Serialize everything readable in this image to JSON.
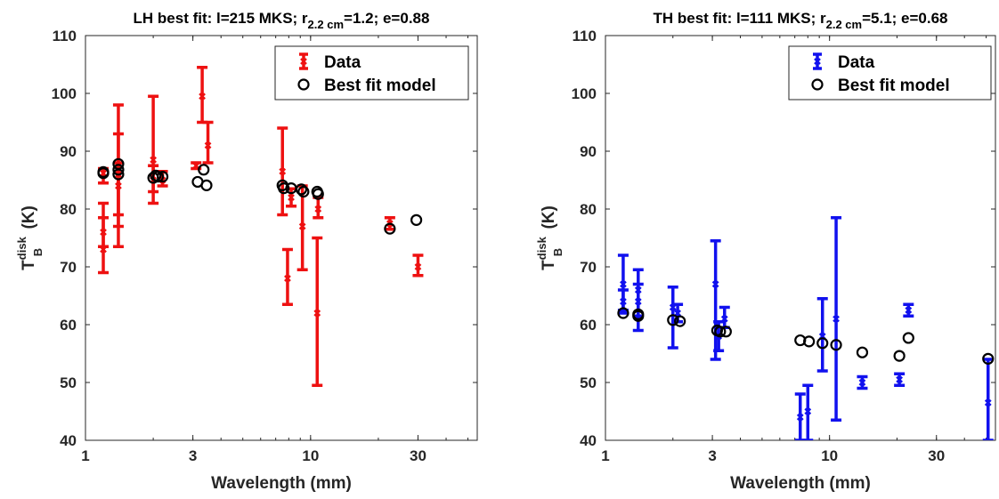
{
  "chart_data": [
    {
      "type": "scatter",
      "title": {
        "pre": "LH best fit: l=215 MKS; r",
        "sub": "2.2 cm",
        "post": "=1.2; e=0.88"
      },
      "xlabel": "Wavelength (mm)",
      "ylabel": {
        "main": "T",
        "sup": "disk",
        "sub": "B",
        "unit": " (K)"
      },
      "xscale": "log",
      "xlim": [
        1,
        55
      ],
      "ylim": [
        40,
        110
      ],
      "xticks": [
        1,
        3,
        10,
        30
      ],
      "xtick_labels": [
        "1",
        "3",
        "10",
        "30"
      ],
      "yticks": [
        40,
        50,
        60,
        70,
        80,
        90,
        100,
        110
      ],
      "ytick_labels": [
        "40",
        "50",
        "60",
        "70",
        "80",
        "90",
        "100",
        "110"
      ],
      "grid": false,
      "legend_position": "top-right",
      "legend": [
        "Data",
        "Best fit model"
      ],
      "colors": {
        "data": "#ee1111",
        "model": "#000000"
      },
      "series": [
        {
          "name": "Data",
          "kind": "errorbar",
          "points": [
            {
              "x": 1.2,
              "y": 86.2,
              "lo": 84.5,
              "hi": 87.0
            },
            {
              "x": 1.2,
              "y": 76.0,
              "lo": 73.5,
              "hi": 78.5
            },
            {
              "x": 1.2,
              "y": 73.0,
              "lo": 69.0,
              "hi": 81.0
            },
            {
              "x": 1.4,
              "y": 87.5,
              "lo": 77.0,
              "hi": 98.0
            },
            {
              "x": 1.4,
              "y": 84.0,
              "lo": 73.5,
              "hi": 88.0
            },
            {
              "x": 1.4,
              "y": 86.0,
              "lo": 79.0,
              "hi": 93.0
            },
            {
              "x": 2.0,
              "y": 88.5,
              "lo": 81.0,
              "hi": 99.5
            },
            {
              "x": 2.0,
              "y": 85.0,
              "lo": 83.0,
              "hi": 87.5
            },
            {
              "x": 2.2,
              "y": 85.0,
              "lo": 84.0,
              "hi": 86.5
            },
            {
              "x": 3.1,
              "y": 87.5,
              "lo": 87.0,
              "hi": 88.0
            },
            {
              "x": 3.3,
              "y": 99.5,
              "lo": 95.0,
              "hi": 104.5
            },
            {
              "x": 3.5,
              "y": 91.0,
              "lo": 88.0,
              "hi": 95.0
            },
            {
              "x": 7.5,
              "y": 86.5,
              "lo": 79.0,
              "hi": 94.0
            },
            {
              "x": 7.9,
              "y": 68.0,
              "lo": 63.5,
              "hi": 73.0
            },
            {
              "x": 8.2,
              "y": 82.0,
              "lo": 80.5,
              "hi": 83.5
            },
            {
              "x": 9.2,
              "y": 77.0,
              "lo": 69.5,
              "hi": 84.0
            },
            {
              "x": 10.7,
              "y": 62.0,
              "lo": 49.5,
              "hi": 75.0
            },
            {
              "x": 10.8,
              "y": 80.0,
              "lo": 78.5,
              "hi": 82.0
            },
            {
              "x": 22.5,
              "y": 77.5,
              "lo": 76.5,
              "hi": 78.5
            },
            {
              "x": 30.0,
              "y": 70.0,
              "lo": 68.5,
              "hi": 72.0
            }
          ]
        },
        {
          "name": "Best fit model",
          "kind": "markers",
          "points": [
            {
              "x": 1.2,
              "y": 86.2
            },
            {
              "x": 1.2,
              "y": 86.4
            },
            {
              "x": 1.4,
              "y": 86.0
            },
            {
              "x": 1.4,
              "y": 86.8
            },
            {
              "x": 1.4,
              "y": 87.8
            },
            {
              "x": 2.0,
              "y": 85.4
            },
            {
              "x": 2.05,
              "y": 85.8
            },
            {
              "x": 2.1,
              "y": 85.6
            },
            {
              "x": 2.2,
              "y": 85.6
            },
            {
              "x": 3.15,
              "y": 84.7
            },
            {
              "x": 3.35,
              "y": 86.8
            },
            {
              "x": 3.45,
              "y": 84.1
            },
            {
              "x": 7.5,
              "y": 84.1
            },
            {
              "x": 7.6,
              "y": 83.6
            },
            {
              "x": 8.2,
              "y": 83.6
            },
            {
              "x": 9.1,
              "y": 83.4
            },
            {
              "x": 9.3,
              "y": 83.0
            },
            {
              "x": 10.7,
              "y": 83.0
            },
            {
              "x": 10.8,
              "y": 82.6
            },
            {
              "x": 22.5,
              "y": 76.6
            },
            {
              "x": 29.5,
              "y": 78.1
            }
          ]
        }
      ]
    },
    {
      "type": "scatter",
      "title": {
        "pre": "TH best fit: l=111 MKS; r",
        "sub": "2.2 cm",
        "post": "=5.1; e=0.68"
      },
      "xlabel": "Wavelength (mm)",
      "ylabel": {
        "main": "T",
        "sup": "disk",
        "sub": "B",
        "unit": " (K)"
      },
      "xscale": "log",
      "xlim": [
        1,
        55
      ],
      "ylim": [
        40,
        110
      ],
      "xticks": [
        1,
        3,
        10,
        30
      ],
      "xtick_labels": [
        "1",
        "3",
        "10",
        "30"
      ],
      "yticks": [
        40,
        50,
        60,
        70,
        80,
        90,
        100,
        110
      ],
      "ytick_labels": [
        "40",
        "50",
        "60",
        "70",
        "80",
        "90",
        "100",
        "110"
      ],
      "grid": false,
      "legend_position": "top-right",
      "legend": [
        "Data",
        "Best fit model"
      ],
      "colors": {
        "data": "#1111ee",
        "model": "#000000"
      },
      "series": [
        {
          "name": "Data",
          "kind": "errorbar",
          "points": [
            {
              "x": 1.2,
              "y": 67.0,
              "lo": 62.5,
              "hi": 72.0
            },
            {
              "x": 1.2,
              "y": 64.0,
              "lo": 62.0,
              "hi": 66.0
            },
            {
              "x": 1.4,
              "y": 66.0,
              "lo": 61.5,
              "hi": 69.5
            },
            {
              "x": 1.4,
              "y": 64.0,
              "lo": 59.0,
              "hi": 67.0
            },
            {
              "x": 2.0,
              "y": 63.0,
              "lo": 56.0,
              "hi": 66.5
            },
            {
              "x": 2.1,
              "y": 62.0,
              "lo": 60.5,
              "hi": 63.5
            },
            {
              "x": 3.1,
              "y": 67.0,
              "lo": 54.0,
              "hi": 74.5
            },
            {
              "x": 3.2,
              "y": 58.0,
              "lo": 55.5,
              "hi": 60.5
            },
            {
              "x": 3.4,
              "y": 61.0,
              "lo": 59.5,
              "hi": 63.0
            },
            {
              "x": 7.4,
              "y": 44.0,
              "lo": 40.0,
              "hi": 48.0
            },
            {
              "x": 8.0,
              "y": 45.0,
              "lo": 40.0,
              "hi": 49.5
            },
            {
              "x": 9.3,
              "y": 58.0,
              "lo": 52.0,
              "hi": 64.5
            },
            {
              "x": 10.7,
              "y": 61.0,
              "lo": 43.5,
              "hi": 78.5
            },
            {
              "x": 14.0,
              "y": 50.0,
              "lo": 49.0,
              "hi": 51.0
            },
            {
              "x": 20.5,
              "y": 50.5,
              "lo": 49.5,
              "hi": 51.5
            },
            {
              "x": 22.5,
              "y": 62.5,
              "lo": 61.5,
              "hi": 63.5
            },
            {
              "x": 51.0,
              "y": 46.5,
              "lo": 40.0,
              "hi": 54.0
            }
          ]
        },
        {
          "name": "Best fit model",
          "kind": "markers",
          "points": [
            {
              "x": 1.2,
              "y": 62.0
            },
            {
              "x": 1.4,
              "y": 61.5
            },
            {
              "x": 1.4,
              "y": 61.8
            },
            {
              "x": 2.0,
              "y": 60.8
            },
            {
              "x": 2.15,
              "y": 60.6
            },
            {
              "x": 3.15,
              "y": 59.0
            },
            {
              "x": 3.25,
              "y": 58.8
            },
            {
              "x": 3.45,
              "y": 58.8
            },
            {
              "x": 7.4,
              "y": 57.3
            },
            {
              "x": 8.1,
              "y": 57.1
            },
            {
              "x": 9.3,
              "y": 56.8
            },
            {
              "x": 10.7,
              "y": 56.5
            },
            {
              "x": 14.0,
              "y": 55.2
            },
            {
              "x": 20.5,
              "y": 54.6
            },
            {
              "x": 22.5,
              "y": 57.7
            },
            {
              "x": 51.0,
              "y": 54.1
            }
          ]
        }
      ]
    }
  ]
}
